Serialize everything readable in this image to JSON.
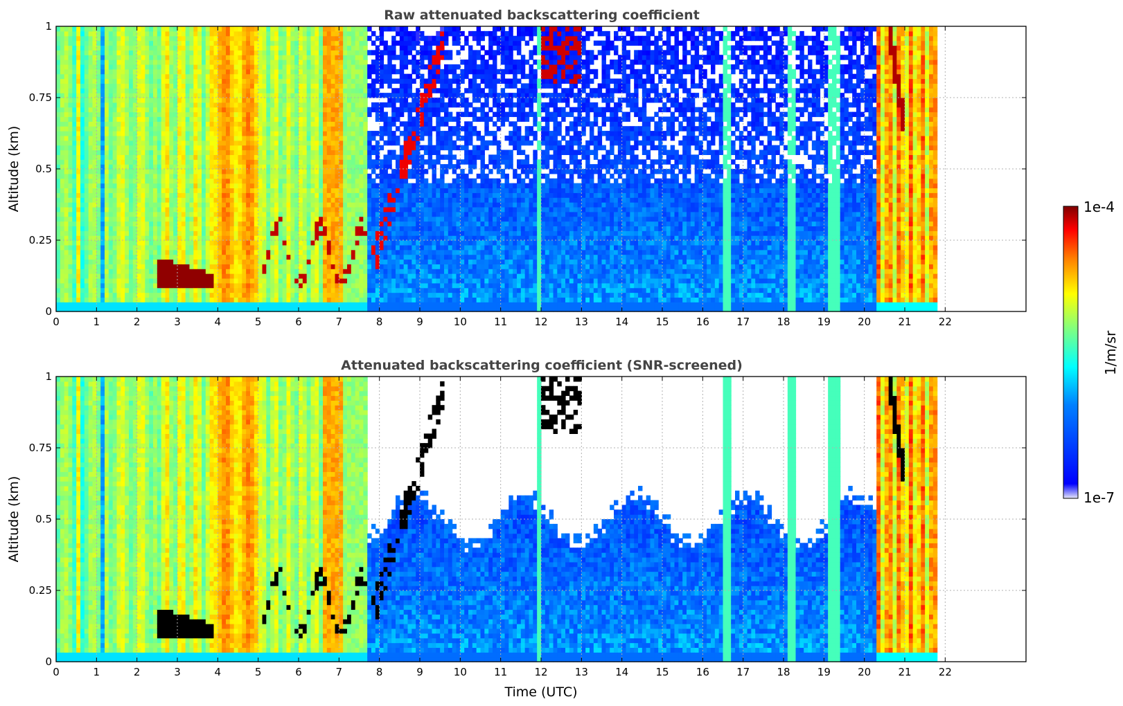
{
  "chart_data": [
    {
      "type": "heatmap",
      "title": "Raw attenuated backscattering coefficient",
      "xlabel": "",
      "ylabel": "Altitude (km)",
      "xlim": [
        0,
        24
      ],
      "ylim": [
        0,
        1
      ],
      "x_ticks": [
        "0",
        "1",
        "2",
        "3",
        "4",
        "5",
        "6",
        "7",
        "8",
        "9",
        "10",
        "11",
        "12",
        "13",
        "14",
        "15",
        "16",
        "17",
        "18",
        "19",
        "20",
        "21",
        "22"
      ],
      "y_ticks": [
        "0",
        "0.25",
        "0.5",
        "0.75",
        "1"
      ],
      "grid": true,
      "screened": false,
      "time_coverage_end": 21.8,
      "features": [
        {
          "label": "aerosol/haze layer",
          "x": [
            0,
            7.75
          ],
          "y": [
            0,
            1
          ]
        },
        {
          "label": "low cloud",
          "x": [
            2.5,
            3.9
          ],
          "y": [
            0.08,
            0.19
          ]
        },
        {
          "label": "cloud streaks",
          "x": [
            5.0,
            13.0
          ],
          "y": [
            0.1,
            1.0
          ]
        },
        {
          "label": "noisy clear air",
          "x": [
            7.75,
            20.3
          ],
          "y": [
            0,
            1
          ]
        },
        {
          "label": "cloud",
          "x": [
            20.3,
            21.8
          ],
          "y": [
            0,
            1
          ]
        }
      ]
    },
    {
      "type": "heatmap",
      "title": "Attenuated backscattering coefficient (SNR-screened)",
      "xlabel": "Time (UTC)",
      "ylabel": "Altitude (km)",
      "xlim": [
        0,
        24
      ],
      "ylim": [
        0,
        1
      ],
      "x_ticks": [
        "0",
        "1",
        "2",
        "3",
        "4",
        "5",
        "6",
        "7",
        "8",
        "9",
        "10",
        "11",
        "12",
        "13",
        "14",
        "15",
        "16",
        "17",
        "18",
        "19",
        "20",
        "21",
        "22"
      ],
      "y_ticks": [
        "0",
        "0.25",
        "0.5",
        "0.75",
        "1"
      ],
      "grid": true,
      "screened": true,
      "time_coverage_end": 21.8,
      "features": [
        {
          "label": "aerosol/haze layer",
          "x": [
            0,
            7.75
          ],
          "y": [
            0,
            1
          ]
        },
        {
          "label": "low cloud (saturated)",
          "x": [
            2.5,
            3.9
          ],
          "y": [
            0.08,
            0.19
          ]
        },
        {
          "label": "screened-out region above boundary layer",
          "x": [
            7.75,
            20.3
          ],
          "y": [
            0.45,
            1.0
          ]
        },
        {
          "label": "cloud",
          "x": [
            20.3,
            21.8
          ],
          "y": [
            0,
            1
          ]
        }
      ]
    }
  ],
  "colorbar": {
    "label": "1/m/sr",
    "max_label": "1e-4",
    "min_label": "1e-7",
    "scale": "log",
    "colormap": "jet",
    "colors": [
      "#e8e8f8",
      "#0000ff",
      "#00c0ff",
      "#40ffb0",
      "#ffff00",
      "#ff8000",
      "#ff0000",
      "#800000"
    ]
  }
}
